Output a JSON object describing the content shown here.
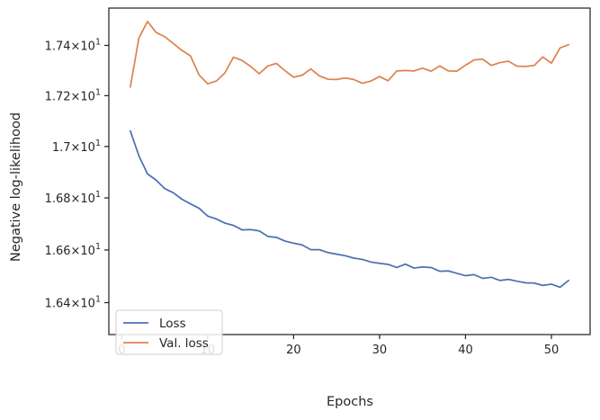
{
  "chart_data": {
    "type": "line",
    "xlabel": "Epochs",
    "ylabel": "Negative log-likelihood",
    "xlim": [
      -1.5,
      54.5
    ],
    "ylim": [
      16.28,
      17.55
    ],
    "y_scale": "log",
    "x_ticks": [
      0,
      10,
      20,
      30,
      40,
      50
    ],
    "x_tick_labels": [
      "0",
      "10",
      "20",
      "30",
      "40",
      "50"
    ],
    "y_ticks": [
      16.4,
      16.6,
      16.8,
      17.0,
      17.2,
      17.4
    ],
    "y_tick_labels": [
      {
        "mantissa": "1.64",
        "times": "×",
        "base": "10",
        "exp": "1"
      },
      {
        "mantissa": "1.66",
        "times": "×",
        "base": "10",
        "exp": "1"
      },
      {
        "mantissa": "1.68",
        "times": "×",
        "base": "10",
        "exp": "1"
      },
      {
        "mantissa": "1.7",
        "times": "×",
        "base": "10",
        "exp": "1"
      },
      {
        "mantissa": "1.72",
        "times": "×",
        "base": "10",
        "exp": "1"
      },
      {
        "mantissa": "1.74",
        "times": "×",
        "base": "10",
        "exp": "1"
      }
    ],
    "grid": false,
    "legend_position": "lower-left",
    "x": [
      1,
      2,
      3,
      4,
      5,
      6,
      7,
      8,
      9,
      10,
      11,
      12,
      13,
      14,
      15,
      16,
      17,
      18,
      19,
      20,
      21,
      22,
      23,
      24,
      25,
      26,
      27,
      28,
      29,
      30,
      31,
      32,
      33,
      34,
      35,
      36,
      37,
      38,
      39,
      40,
      41,
      42,
      43,
      44,
      45,
      46,
      47,
      48,
      49,
      50,
      51,
      52
    ],
    "series": [
      {
        "name": "Loss",
        "color": "#4c72b0",
        "values": [
          17.061,
          16.963,
          16.893,
          16.869,
          16.836,
          16.82,
          16.795,
          16.777,
          16.76,
          16.73,
          16.719,
          16.703,
          16.694,
          16.677,
          16.678,
          16.673,
          16.652,
          16.648,
          16.634,
          16.626,
          16.619,
          16.601,
          16.601,
          16.59,
          16.584,
          16.578,
          16.569,
          16.564,
          16.554,
          16.549,
          16.545,
          16.533,
          16.546,
          16.531,
          16.535,
          16.533,
          16.519,
          16.52,
          16.511,
          16.502,
          16.506,
          16.492,
          16.496,
          16.484,
          16.488,
          16.481,
          16.475,
          16.474,
          16.465,
          16.47,
          16.458,
          16.484
        ]
      },
      {
        "name": "Val. loss",
        "color": "#dd8452",
        "values": [
          17.234,
          17.43,
          17.496,
          17.452,
          17.435,
          17.408,
          17.38,
          17.358,
          17.282,
          17.247,
          17.258,
          17.29,
          17.353,
          17.34,
          17.316,
          17.287,
          17.318,
          17.328,
          17.299,
          17.273,
          17.281,
          17.306,
          17.278,
          17.265,
          17.264,
          17.27,
          17.264,
          17.249,
          17.258,
          17.276,
          17.259,
          17.298,
          17.3,
          17.298,
          17.309,
          17.297,
          17.318,
          17.298,
          17.297,
          17.321,
          17.342,
          17.345,
          17.32,
          17.331,
          17.337,
          17.317,
          17.316,
          17.32,
          17.354,
          17.329,
          17.39,
          17.403
        ]
      }
    ]
  }
}
